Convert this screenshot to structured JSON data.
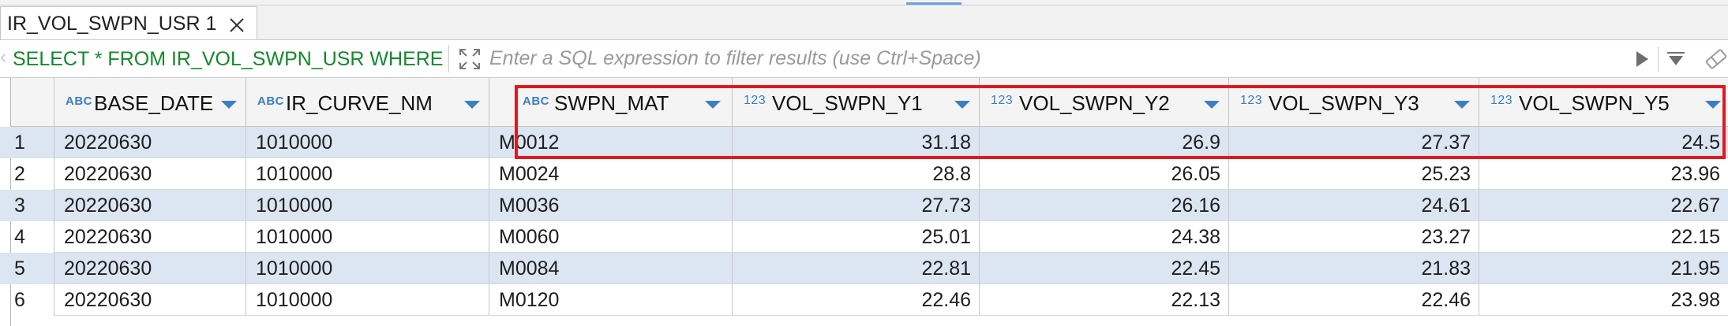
{
  "editor": {
    "tab_label": "IR_VOL_SWPN_USR 1"
  },
  "filter": {
    "sql_prefix": "SELECT * FROM IR_VOL_SWPN_USR WHERE",
    "placeholder": "Enter a SQL expression to filter results (use Ctrl+Space)"
  },
  "grid": {
    "columns": [
      {
        "name": "BASE_DATE",
        "type": "ABC"
      },
      {
        "name": "IR_CURVE_NM",
        "type": "ABC"
      },
      {
        "name": "SWPN_MAT",
        "type": "ABC"
      },
      {
        "name": "VOL_SWPN_Y1",
        "type": "123"
      },
      {
        "name": "VOL_SWPN_Y2",
        "type": "123"
      },
      {
        "name": "VOL_SWPN_Y3",
        "type": "123"
      },
      {
        "name": "VOL_SWPN_Y5",
        "type": "123"
      }
    ],
    "rows": [
      {
        "num": "1",
        "cells": [
          "20220630",
          "1010000",
          "M0012",
          "31.18",
          "26.9",
          "27.37",
          "24.5"
        ]
      },
      {
        "num": "2",
        "cells": [
          "20220630",
          "1010000",
          "M0024",
          "28.8",
          "26.05",
          "25.23",
          "23.96"
        ]
      },
      {
        "num": "3",
        "cells": [
          "20220630",
          "1010000",
          "M0036",
          "27.73",
          "26.16",
          "24.61",
          "22.67"
        ]
      },
      {
        "num": "4",
        "cells": [
          "20220630",
          "1010000",
          "M0060",
          "25.01",
          "24.38",
          "23.27",
          "22.15"
        ]
      },
      {
        "num": "5",
        "cells": [
          "20220630",
          "1010000",
          "M0084",
          "22.81",
          "22.45",
          "21.83",
          "21.95"
        ]
      },
      {
        "num": "6",
        "cells": [
          "20220630",
          "1010000",
          "M0120",
          "22.46",
          "22.13",
          "22.46",
          "23.98"
        ]
      }
    ]
  },
  "colors": {
    "sql_text": "#14892c",
    "type_icon": "#3a7fc4",
    "row_alt": "#dce6f2",
    "highlight_box": "#e0191f"
  }
}
